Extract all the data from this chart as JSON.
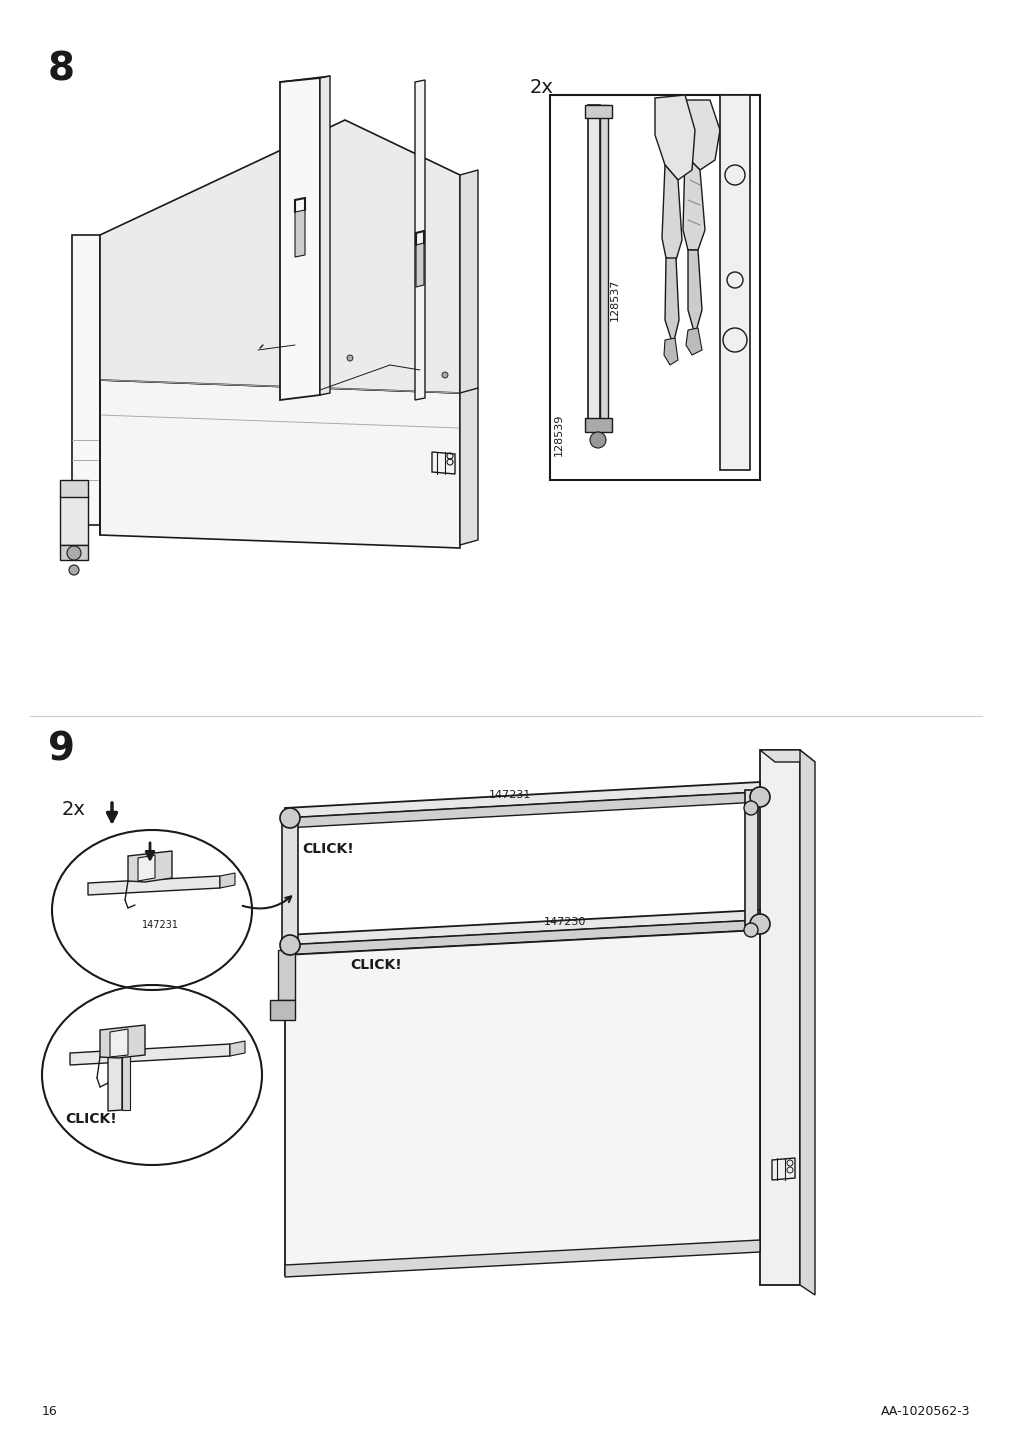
{
  "page_width": 10.12,
  "page_height": 14.32,
  "bg_color": "#ffffff",
  "step8_number": "8",
  "step9_number": "9",
  "label_2x_s8": "2x",
  "label_2x_s9": "2x",
  "part_128537": "128537",
  "part_128539": "128539",
  "part_147231": "147231",
  "part_147230": "147230",
  "click_text": "CLICK!",
  "page_number": "16",
  "doc_number": "AA-1020562-3",
  "lc": "#1a1a1a",
  "lc_gray": "#aaaaaa",
  "step_fontsize": 28,
  "part_fontsize": 8,
  "click_fontsize": 10,
  "footer_fontsize": 9
}
